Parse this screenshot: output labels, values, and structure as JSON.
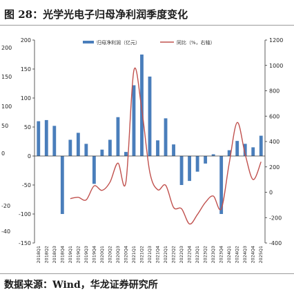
{
  "figure": {
    "title": "图 28：光学光电子归母净利润季度变化",
    "source": "数据来源：Wind，华龙证券研究所"
  },
  "chart_data": {
    "type": "bar+line",
    "categories": [
      "2018Q1",
      "2018Q2",
      "2018Q3",
      "2018Q4",
      "2019Q1",
      "2019Q2",
      "2019Q3",
      "2019Q4",
      "2020Q1",
      "2020Q2",
      "2020Q3",
      "2020Q4",
      "2021Q1",
      "2021Q2",
      "2021Q3",
      "2021Q4",
      "2022Q1",
      "2022Q2",
      "2022Q3",
      "2022Q4",
      "2023Q1",
      "2023Q2",
      "2023Q3",
      "2023Q4",
      "2024Q1",
      "2024Q2",
      "2024Q3",
      "2024Q4",
      "2025Q1"
    ],
    "series": [
      {
        "name": "归母净利润（亿元）",
        "type": "bar",
        "axis": "left",
        "color": "#4a7ebb",
        "values": [
          60,
          62,
          52,
          -100,
          28,
          40,
          21,
          -48,
          11,
          28,
          67,
          7,
          122,
          175,
          137,
          27,
          65,
          20,
          -50,
          -43,
          -27,
          -13,
          3,
          -100,
          10,
          26,
          21,
          15,
          35
        ]
      },
      {
        "name": "同比（%，右轴）",
        "type": "line",
        "axis": "right",
        "color": "#c0504d",
        "values": [
          null,
          null,
          null,
          null,
          -50,
          -40,
          -60,
          50,
          15,
          80,
          230,
          80,
          960,
          650,
          160,
          20,
          55,
          -120,
          -130,
          -250,
          -175,
          -80,
          -30,
          -130,
          230,
          550,
          300,
          100,
          240
        ]
      }
    ],
    "left_axis": {
      "min": -150,
      "max": 200,
      "ticks": [
        -150,
        -100,
        -50,
        0,
        50,
        100,
        150,
        200
      ]
    },
    "right_axis": {
      "min": -400,
      "max": 1200,
      "ticks": [
        -400,
        -200,
        0,
        200,
        400,
        600,
        800,
        1000,
        1200
      ]
    },
    "outer_labels": [
      "200",
      "150",
      "100",
      "50",
      "0",
      "-20",
      "-40"
    ],
    "legend_position": "top-center",
    "grid": false
  }
}
